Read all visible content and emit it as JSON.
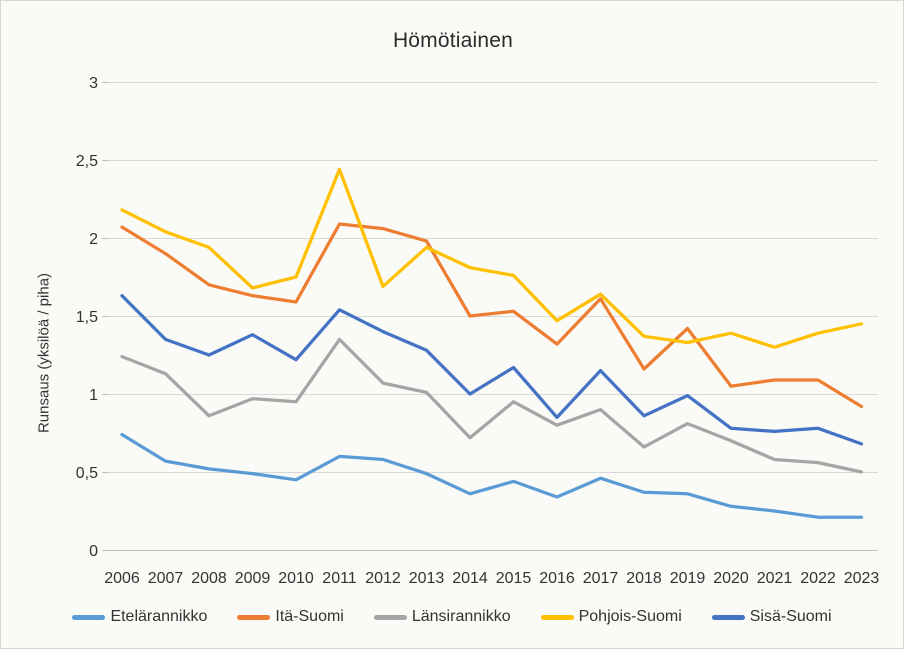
{
  "chart": {
    "title": "Hömötiainen",
    "y_axis_title": "Runsaus (yksilöä / piha)"
  },
  "chart_data": {
    "type": "line",
    "title": "Hömötiainen",
    "xlabel": "",
    "ylabel": "Runsaus (yksilöä / piha)",
    "x": [
      2006,
      2007,
      2008,
      2009,
      2010,
      2011,
      2012,
      2013,
      2014,
      2015,
      2016,
      2017,
      2018,
      2019,
      2020,
      2021,
      2022,
      2023
    ],
    "ylim": [
      0,
      3
    ],
    "yticks": [
      0,
      0.5,
      1,
      1.5,
      2,
      2.5,
      3
    ],
    "ytick_labels": [
      "0",
      "0,5",
      "1",
      "1,5",
      "2",
      "2,5",
      "3"
    ],
    "grid": true,
    "legend_position": "bottom",
    "series": [
      {
        "name": "Etelärannikko",
        "color": "#5B9BD5",
        "values": [
          0.74,
          0.57,
          0.52,
          0.49,
          0.45,
          0.6,
          0.58,
          0.49,
          0.36,
          0.44,
          0.34,
          0.46,
          0.37,
          0.36,
          0.28,
          0.25,
          0.21,
          0.21
        ]
      },
      {
        "name": "Itä-Suomi",
        "color": "#ED7D31",
        "values": [
          2.07,
          1.9,
          1.7,
          1.63,
          1.59,
          2.09,
          2.06,
          1.98,
          1.5,
          1.53,
          1.32,
          1.61,
          1.16,
          1.42,
          1.05,
          1.09,
          1.09,
          0.92
        ]
      },
      {
        "name": "Länsirannikko",
        "color": "#A5A5A5",
        "values": [
          1.24,
          1.13,
          0.86,
          0.97,
          0.95,
          1.35,
          1.07,
          1.01,
          0.72,
          0.95,
          0.8,
          0.9,
          0.66,
          0.81,
          0.7,
          0.58,
          0.56,
          0.5
        ]
      },
      {
        "name": "Pohjois-Suomi",
        "color": "#FFC000",
        "values": [
          2.18,
          2.04,
          1.94,
          1.68,
          1.75,
          2.44,
          1.69,
          1.94,
          1.81,
          1.76,
          1.47,
          1.64,
          1.37,
          1.33,
          1.39,
          1.3,
          1.39,
          1.45
        ]
      },
      {
        "name": "Sisä-Suomi",
        "color": "#4472C4",
        "values": [
          1.63,
          1.35,
          1.25,
          1.38,
          1.22,
          1.54,
          1.4,
          1.28,
          1.0,
          1.17,
          0.85,
          1.15,
          0.86,
          0.99,
          0.78,
          0.76,
          0.78,
          0.68
        ]
      }
    ]
  }
}
